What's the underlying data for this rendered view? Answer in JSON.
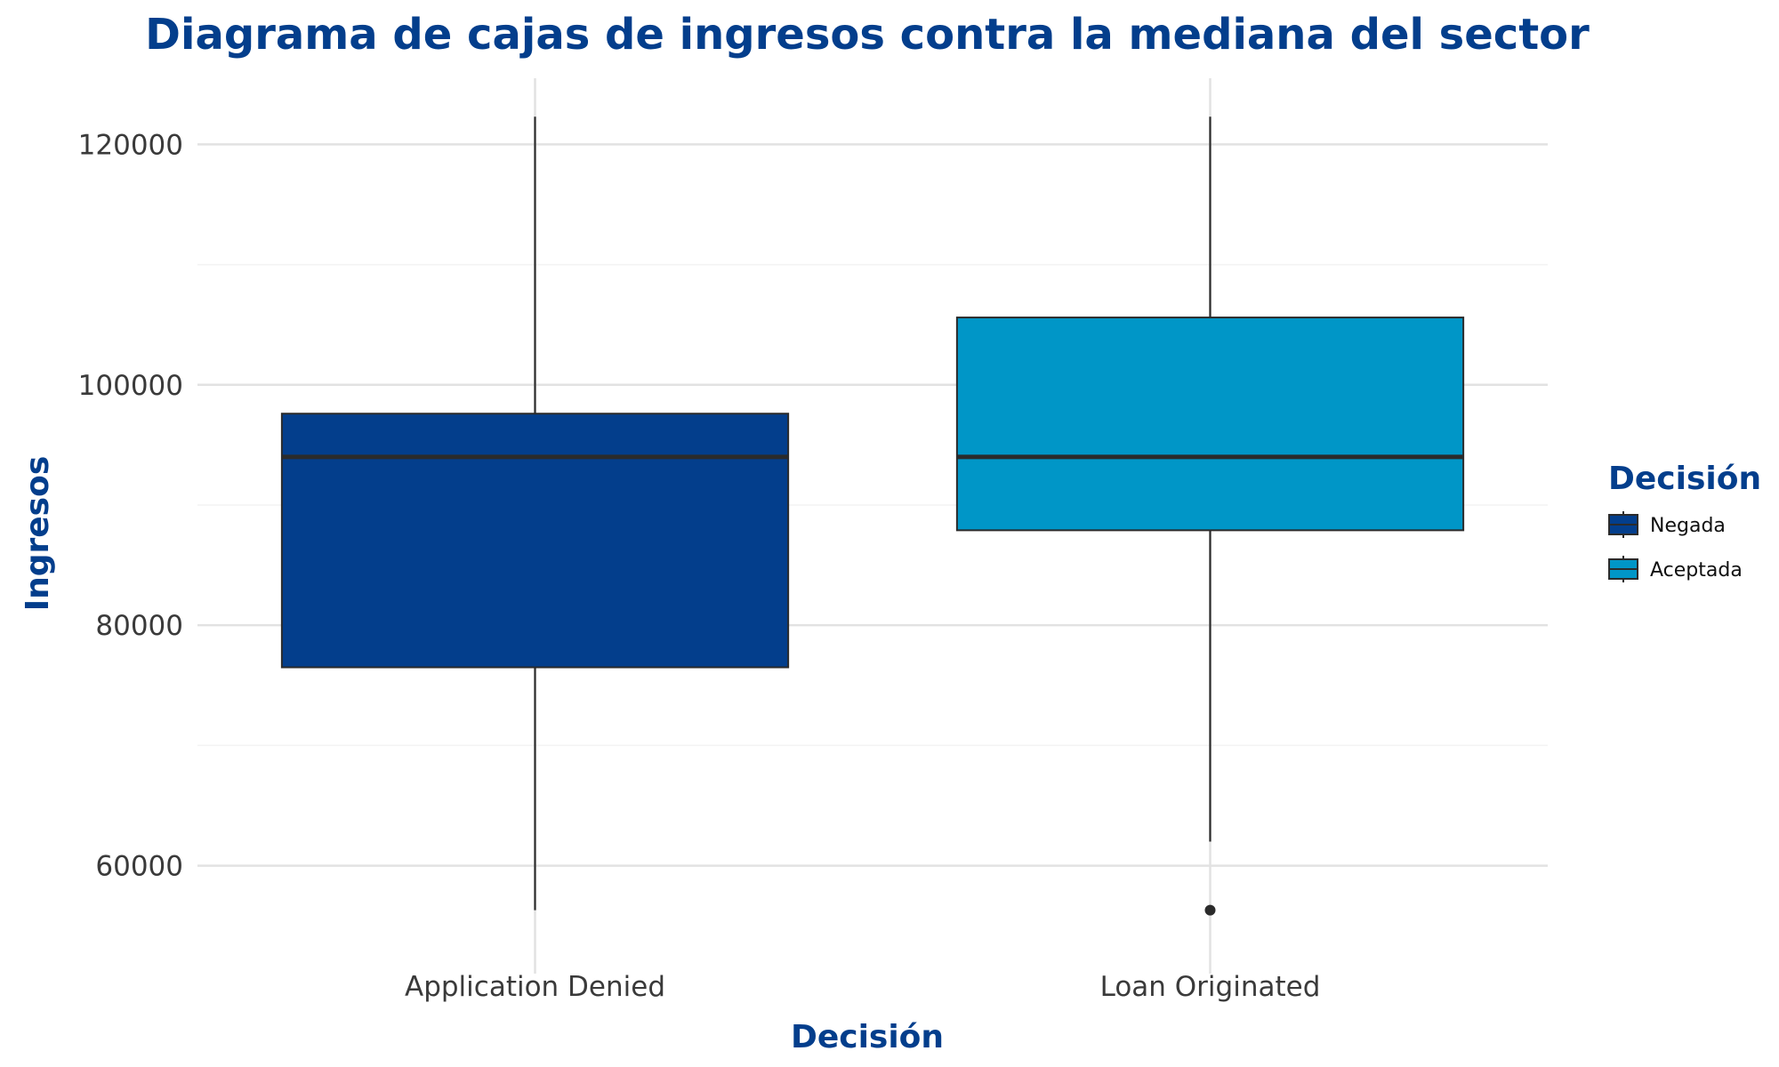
{
  "chart_data": {
    "type": "boxplot",
    "title": "Diagrama de cajas de ingresos contra la mediana del sector",
    "xlabel": "Decisión",
    "ylabel": "Ingresos",
    "categories": [
      "Application Denied",
      "Loan Originated"
    ],
    "ylim": [
      52500,
      125500
    ],
    "yticks": [
      60000,
      80000,
      100000,
      120000
    ],
    "grid": true,
    "legend": {
      "title": "Decisión",
      "position": "right",
      "entries": [
        "Negada",
        "Aceptada"
      ]
    },
    "series": [
      {
        "name": "Negada",
        "category": "Application Denied",
        "color": "#033e8c",
        "whisker_low": 56300,
        "q1": 76500,
        "median": 94000,
        "q3": 97600,
        "whisker_high": 122300,
        "outliers": []
      },
      {
        "name": "Aceptada",
        "category": "Loan Originated",
        "color": "#0096c7",
        "whisker_low": 62000,
        "q1": 87900,
        "median": 94000,
        "q3": 105600,
        "whisker_high": 122300,
        "outliers": [
          56300
        ]
      }
    ]
  }
}
